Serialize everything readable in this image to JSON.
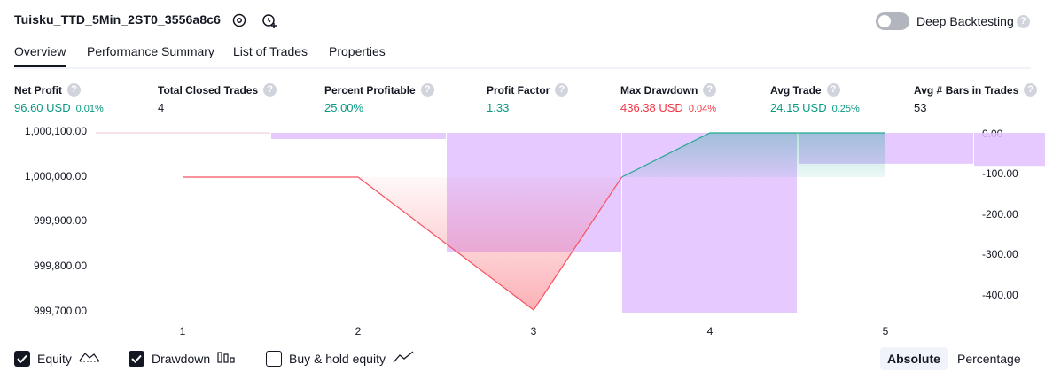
{
  "header": {
    "title": "Tuisku_TTD_5Min_2ST0_3556a8c6",
    "deep_backtesting_label": "Deep Backtesting",
    "deep_backtesting_enabled": false,
    "help": "?"
  },
  "tabs": [
    {
      "label": "Overview",
      "active": true
    },
    {
      "label": "Performance Summary",
      "active": false
    },
    {
      "label": "List of Trades",
      "active": false
    },
    {
      "label": "Properties",
      "active": false
    }
  ],
  "metrics": {
    "net_profit": {
      "label": "Net Profit",
      "value": "96.60 USD",
      "pct": "0.01%"
    },
    "total_closed_trades": {
      "label": "Total Closed Trades",
      "value": "4"
    },
    "percent_profitable": {
      "label": "Percent Profitable",
      "value": "25.00%"
    },
    "profit_factor": {
      "label": "Profit Factor",
      "value": "1.33"
    },
    "max_drawdown": {
      "label": "Max Drawdown",
      "value": "436.38 USD",
      "pct": "0.04%"
    },
    "avg_trade": {
      "label": "Avg Trade",
      "value": "24.15 USD",
      "pct": "0.25%"
    },
    "avg_bars": {
      "label": "Avg # Bars in Trades",
      "value": "53"
    }
  },
  "chart_data": {
    "type": "line",
    "x": [
      1,
      2,
      3,
      4,
      5
    ],
    "left_axis": {
      "ticks": [
        "1,000,100.00",
        "1,000,000.00",
        "999,900.00",
        "999,800.00",
        "999,700.00"
      ],
      "range": [
        999700,
        1000100
      ]
    },
    "right_axis": {
      "ticks": [
        "0.00",
        "-100.00",
        "-200.00",
        "-300.00",
        "-400.00"
      ],
      "range": [
        -430,
        0
      ]
    },
    "series": [
      {
        "name": "Equity",
        "values": [
          1000000,
          1000000,
          999700,
          1000100,
          1000100
        ]
      },
      {
        "name": "Drawdown",
        "type": "bar",
        "values": [
          -15,
          -290,
          -436.38,
          -75,
          -80
        ]
      }
    ],
    "colors": {
      "equity_line": "#f7525f",
      "equity_up": "#22ab94",
      "drawdown": "#e1bfff"
    }
  },
  "legend": {
    "equity": {
      "label": "Equity",
      "checked": true
    },
    "drawdown": {
      "label": "Drawdown",
      "checked": true
    },
    "buy_hold": {
      "label": "Buy & hold equity",
      "checked": false
    }
  },
  "scale_toggle": {
    "absolute": "Absolute",
    "percentage": "Percentage",
    "selected": "Absolute"
  }
}
